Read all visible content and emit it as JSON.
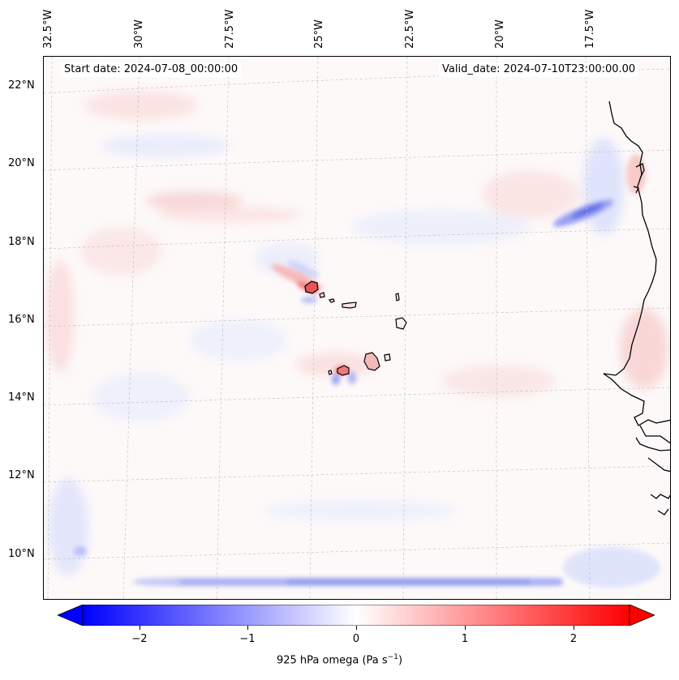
{
  "map": {
    "lon_labels": [
      "32.5°W",
      "30°W",
      "27.5°W",
      "25°W",
      "22.5°W",
      "20°W",
      "17.5°W"
    ],
    "lat_labels": [
      "22°N",
      "20°N",
      "18°N",
      "16°N",
      "14°N",
      "12°N",
      "10°N"
    ],
    "start_date": "Start date: 2024-07-08_00:00:00",
    "valid_date": "Valid_date: 2024-07-10T23:00:00.00",
    "gridlines": true,
    "colormap": "bwr",
    "coastline_color": "#000000"
  },
  "colorbar": {
    "ticks": [
      "−2",
      "−1",
      "0",
      "1",
      "2"
    ],
    "range": [
      -2.75,
      2.75
    ],
    "extend": "both",
    "label_prefix": "925 hPa omega (Pa s",
    "label_exp": "−1",
    "label_suffix": ")",
    "low_color": "#0000ff",
    "mid_color": "#ffffff",
    "high_color": "#ff0000"
  }
}
